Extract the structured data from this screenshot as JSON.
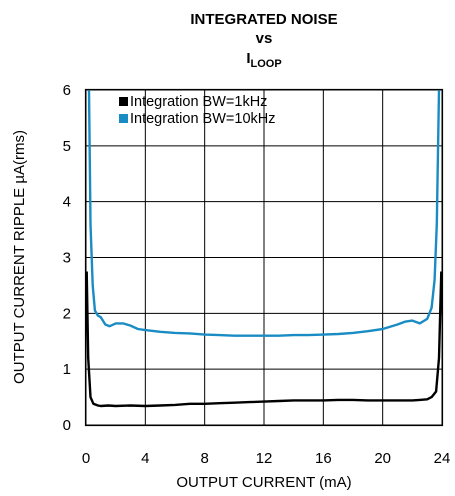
{
  "title": {
    "line1": "INTEGRATED NOISE",
    "line2": "vs",
    "line3_main": "I",
    "line3_sub": "LOOP"
  },
  "chart_data": {
    "type": "line",
    "xlabel": "OUTPUT CURRENT (mA)",
    "ylabel": "OUTPUT CURRENT RIPPLE µA(rms)",
    "xlim": [
      0,
      24
    ],
    "ylim": [
      0,
      6
    ],
    "xticks": [
      0,
      4,
      8,
      12,
      16,
      20,
      24
    ],
    "yticks": [
      0,
      1,
      2,
      3,
      4,
      5,
      6
    ],
    "grid": true,
    "legend_position": "top-left",
    "series": [
      {
        "name": "Integration BW=1kHz",
        "color": "#000000",
        "x": [
          0.05,
          0.15,
          0.3,
          0.5,
          0.8,
          1,
          1.5,
          2,
          3,
          4,
          5,
          6,
          7,
          8,
          9,
          10,
          11,
          12,
          13,
          14,
          15,
          16,
          17,
          18,
          19,
          20,
          21,
          22,
          22.5,
          23,
          23.3,
          23.6,
          23.8,
          23.95
        ],
        "y": [
          2.75,
          1.2,
          0.5,
          0.38,
          0.35,
          0.34,
          0.35,
          0.34,
          0.35,
          0.34,
          0.35,
          0.36,
          0.38,
          0.38,
          0.39,
          0.4,
          0.41,
          0.42,
          0.43,
          0.44,
          0.44,
          0.44,
          0.45,
          0.45,
          0.44,
          0.44,
          0.44,
          0.44,
          0.45,
          0.46,
          0.5,
          0.6,
          1.2,
          2.75
        ]
      },
      {
        "name": "Integration BW=10kHz",
        "color": "#1a8cc4",
        "x": [
          0.2,
          0.3,
          0.45,
          0.6,
          0.8,
          1,
          1.3,
          1.6,
          2,
          2.5,
          3,
          3.5,
          4,
          5,
          6,
          7,
          8,
          9,
          10,
          11,
          12,
          13,
          14,
          15,
          16,
          17,
          18,
          19,
          20,
          21,
          21.5,
          22,
          22.5,
          23,
          23.3,
          23.5,
          23.65,
          23.8
        ],
        "y": [
          6,
          3.6,
          2.5,
          2.05,
          1.96,
          1.93,
          1.8,
          1.77,
          1.82,
          1.82,
          1.78,
          1.72,
          1.7,
          1.67,
          1.65,
          1.64,
          1.62,
          1.61,
          1.6,
          1.6,
          1.6,
          1.6,
          1.61,
          1.61,
          1.62,
          1.63,
          1.65,
          1.68,
          1.72,
          1.8,
          1.85,
          1.87,
          1.82,
          1.9,
          2.1,
          2.6,
          3.6,
          6
        ]
      }
    ]
  }
}
